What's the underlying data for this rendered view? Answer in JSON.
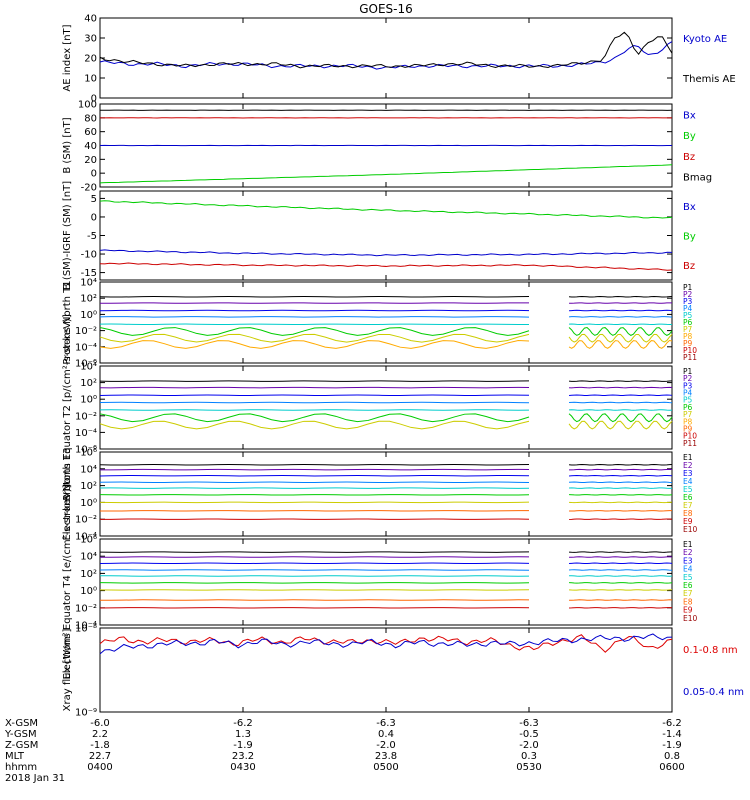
{
  "title": "GOES-16",
  "chart_data": [
    {
      "type": "line",
      "id": "ae",
      "ylabel": "AE index [nT]",
      "ylim": [
        0,
        40
      ],
      "yticks": [
        "0",
        "10",
        "20",
        "30",
        "40"
      ],
      "series": [
        {
          "name": "Kyoto AE",
          "color": "#0000cc",
          "x": [
            0,
            5,
            10,
            15,
            20,
            25,
            30,
            35,
            40,
            45,
            50,
            55,
            60,
            65,
            70,
            75,
            80,
            85,
            88,
            90,
            92,
            94,
            96,
            98,
            100
          ],
          "y": [
            18,
            17,
            17,
            16,
            17,
            17,
            16,
            16,
            16,
            16,
            15,
            16,
            16,
            16,
            16,
            16,
            16,
            17,
            18,
            20,
            24,
            26,
            21,
            24,
            28
          ]
        },
        {
          "name": "Themis AE",
          "color": "#000000",
          "x": [
            0,
            5,
            10,
            15,
            20,
            25,
            30,
            35,
            40,
            45,
            50,
            55,
            60,
            65,
            70,
            75,
            80,
            85,
            88,
            90,
            92,
            94,
            96,
            98,
            100
          ],
          "y": [
            20,
            18,
            17,
            16,
            17,
            17,
            17,
            16,
            16,
            16,
            16,
            16,
            17,
            17,
            16,
            16,
            16,
            18,
            19,
            30,
            33,
            22,
            28,
            31,
            23
          ]
        }
      ]
    },
    {
      "type": "line",
      "id": "bsm",
      "ylabel": "B (SM) [nT]",
      "ylim": [
        -20,
        100
      ],
      "yticks": [
        "-20",
        "0",
        "20",
        "40",
        "60",
        "80",
        "100"
      ],
      "series": [
        {
          "name": "Bx",
          "color": "#0000cc",
          "x": [
            0,
            100
          ],
          "y": [
            40,
            40
          ]
        },
        {
          "name": "By",
          "color": "#00cc00",
          "x": [
            0,
            25,
            50,
            75,
            100
          ],
          "y": [
            -14,
            -8,
            -2,
            5,
            12
          ]
        },
        {
          "name": "Bz",
          "color": "#cc0000",
          "x": [
            0,
            100
          ],
          "y": [
            80,
            80
          ]
        },
        {
          "name": "Bmag",
          "color": "#000000",
          "x": [
            0,
            100
          ],
          "y": [
            91,
            91
          ]
        }
      ]
    },
    {
      "type": "line",
      "id": "bigrf",
      "ylabel": "B (SM)-IGRF (SM) [nT]",
      "ylim": [
        -17,
        7
      ],
      "yticks": [
        "5",
        "0",
        "-5",
        "-10",
        "-15"
      ],
      "series": [
        {
          "name": "Bx",
          "color": "#0000cc",
          "x": [
            0,
            25,
            50,
            75,
            100
          ],
          "y": [
            -9,
            -9.8,
            -10.3,
            -10.1,
            -9.6
          ]
        },
        {
          "name": "By",
          "color": "#00cc00",
          "x": [
            0,
            25,
            50,
            75,
            100
          ],
          "y": [
            4.3,
            3,
            1.8,
            0.8,
            -0.3
          ]
        },
        {
          "name": "Bz",
          "color": "#cc0000",
          "x": [
            0,
            25,
            50,
            75,
            100
          ],
          "y": [
            -12.5,
            -13,
            -13.2,
            -13,
            -14.3
          ]
        }
      ]
    },
    {
      "type": "line",
      "id": "protons-north",
      "ylabel": "Protons North T1",
      "yscale": "log",
      "ylim": [
        1e-06,
        10000.0
      ],
      "yticks": [
        "10⁴",
        "10²",
        "10⁰",
        "10⁻²",
        "10⁻⁴",
        "10⁻⁶"
      ],
      "gap": [
        75,
        82
      ],
      "series": [
        {
          "name": "P1",
          "color": "#000000",
          "y": 150.0
        },
        {
          "name": "P2",
          "color": "#6600aa",
          "y": 25.0
        },
        {
          "name": "P3",
          "color": "#0000ee",
          "y": 3
        },
        {
          "name": "P4",
          "color": "#0080ff",
          "y": 0.5
        },
        {
          "name": "P5",
          "color": "#00cccc",
          "y": 0.06
        },
        {
          "name": "P6",
          "color": "#00cc00",
          "y": 0.008
        },
        {
          "name": "P7",
          "color": "#cccc00",
          "y": 0.0012
        },
        {
          "name": "P8",
          "color": "#ffaa00",
          "y": 0.0002
        },
        {
          "name": "P9",
          "color": "#ff6600",
          "y": null
        },
        {
          "name": "P10",
          "color": "#cc0000",
          "y": null
        },
        {
          "name": "P11",
          "color": "#990000",
          "y": null
        }
      ]
    },
    {
      "type": "line",
      "id": "protons-equator",
      "ylabel": "Protons Equator T2 [p/(cm²-s-sr-keV)]",
      "yscale": "log",
      "ylim": [
        1e-06,
        10000.0
      ],
      "yticks": [
        "10⁴",
        "10²",
        "10⁰",
        "10⁻²",
        "10⁻⁴",
        "10⁻⁶"
      ],
      "gap": [
        75,
        82
      ],
      "series": [
        {
          "name": "P1",
          "color": "#000000",
          "y": 150.0
        },
        {
          "name": "P2",
          "color": "#6600aa",
          "y": 25.0
        },
        {
          "name": "P3",
          "color": "#0000ee",
          "y": 3
        },
        {
          "name": "P4",
          "color": "#0080ff",
          "y": 0.4
        },
        {
          "name": "P5",
          "color": "#00cccc",
          "y": 0.05
        },
        {
          "name": "P6",
          "color": "#00cc00",
          "y": 0.006
        },
        {
          "name": "P7",
          "color": "#cccc00",
          "y": 0.0008
        },
        {
          "name": "P8",
          "color": "#ffaa00",
          "y": null
        },
        {
          "name": "P9",
          "color": "#ff6600",
          "y": null
        },
        {
          "name": "P10",
          "color": "#cc0000",
          "y": null
        },
        {
          "name": "P11",
          "color": "#990000",
          "y": null
        }
      ]
    },
    {
      "type": "line",
      "id": "electrons-north",
      "ylabel": "Electrons North T3",
      "yscale": "log",
      "ylim": [
        0.0001,
        1000000.0
      ],
      "yticks": [
        "10⁶",
        "10⁴",
        "10²",
        "10⁰",
        "10⁻²",
        "10⁻⁴"
      ],
      "gap": [
        75,
        82
      ],
      "series": [
        {
          "name": "E1",
          "color": "#000000",
          "y": 30000.0
        },
        {
          "name": "E2",
          "color": "#6600aa",
          "y": 8000.0
        },
        {
          "name": "E3",
          "color": "#0000ee",
          "y": 1500.0
        },
        {
          "name": "E4",
          "color": "#0080ff",
          "y": 250.0
        },
        {
          "name": "E5",
          "color": "#00cccc",
          "y": 50
        },
        {
          "name": "E6",
          "color": "#00cc00",
          "y": 8
        },
        {
          "name": "E7",
          "color": "#cccc00",
          "y": 1
        },
        {
          "name": "E8",
          "color": "#ff6600",
          "y": 0.1
        },
        {
          "name": "E9",
          "color": "#cc0000",
          "y": 0.01
        },
        {
          "name": "E10",
          "color": "#990000",
          "y": null
        }
      ]
    },
    {
      "type": "line",
      "id": "electrons-equator",
      "ylabel": "Electrons Equator T4 [e/(cm²-s-sr-keV)]",
      "yscale": "log",
      "ylim": [
        0.0001,
        1000000.0
      ],
      "yticks": [
        "10⁶",
        "10⁴",
        "10²",
        "10⁰",
        "10⁻²",
        "10⁻⁴"
      ],
      "gap": [
        75,
        82
      ],
      "series": [
        {
          "name": "E1",
          "color": "#000000",
          "y": 30000.0
        },
        {
          "name": "E2",
          "color": "#6600aa",
          "y": 8000.0
        },
        {
          "name": "E3",
          "color": "#0000ee",
          "y": 1500.0
        },
        {
          "name": "E4",
          "color": "#0080ff",
          "y": 250.0
        },
        {
          "name": "E5",
          "color": "#00cccc",
          "y": 50
        },
        {
          "name": "E6",
          "color": "#00cc00",
          "y": 8
        },
        {
          "name": "E7",
          "color": "#cccc00",
          "y": 1.2
        },
        {
          "name": "E8",
          "color": "#ff6600",
          "y": 0.08
        },
        {
          "name": "E9",
          "color": "#cc0000",
          "y": 0.01
        },
        {
          "name": "E10",
          "color": "#990000",
          "y": null
        }
      ]
    },
    {
      "type": "line",
      "id": "xray",
      "ylabel": "Xray flux [W/m²]",
      "yscale": "log",
      "ylim": [
        1e-09,
        1e-08
      ],
      "yticks": [
        "10⁻⁸",
        "10⁻⁹"
      ],
      "series": [
        {
          "name": "0.1-0.8 nm",
          "color": "#dd0000",
          "x": [
            0,
            4,
            8,
            12,
            16,
            20,
            24,
            28,
            32,
            36,
            40,
            44,
            48,
            52,
            56,
            60,
            64,
            68,
            72,
            76,
            80,
            84,
            88,
            92,
            96,
            100
          ],
          "y": [
            6.5e-09,
            7.5e-09,
            6.8e-09,
            7.2e-09,
            6.9e-09,
            7.1e-09,
            6.6e-09,
            7.3e-09,
            6.8e-09,
            7.4e-09,
            7e-09,
            6.7e-09,
            7.2e-09,
            6.5e-09,
            7.6e-09,
            7.3e-09,
            6.9e-09,
            7.1e-09,
            6.2e-09,
            5.6e-09,
            6.9e-09,
            7.8e-09,
            5.4e-09,
            7.9e-09,
            5.7e-09,
            7.2e-09
          ]
        },
        {
          "name": "0.05-0.4 nm",
          "color": "#0000cc",
          "x": [
            0,
            4,
            8,
            12,
            16,
            20,
            24,
            28,
            32,
            36,
            40,
            44,
            48,
            52,
            56,
            60,
            64,
            68,
            72,
            76,
            80,
            84,
            88,
            92,
            96,
            100
          ],
          "y": [
            5.3e-09,
            5.8e-09,
            6.2e-09,
            6.5e-09,
            6.6e-09,
            6.9e-09,
            6.3e-09,
            7e-09,
            6.4e-09,
            6.8e-09,
            6.6e-09,
            6.4e-09,
            6.9e-09,
            6.2e-09,
            6.8e-09,
            6.5e-09,
            6.3e-09,
            6.7e-09,
            6.4e-09,
            6.8e-09,
            7e-09,
            7.4e-09,
            7.5e-09,
            7.6e-09,
            7.8e-09,
            7.7e-09
          ]
        }
      ]
    }
  ],
  "footer": {
    "rows": [
      {
        "label": "X-GSM",
        "values": [
          "-6.0",
          "-6.2",
          "-6.3",
          "-6.3",
          "-6.2"
        ]
      },
      {
        "label": "Y-GSM",
        "values": [
          "2.2",
          "1.3",
          "0.4",
          "-0.5",
          "-1.4"
        ]
      },
      {
        "label": "Z-GSM",
        "values": [
          "-1.8",
          "-1.9",
          "-2.0",
          "-2.0",
          "-1.9"
        ]
      },
      {
        "label": "MLT",
        "values": [
          "22.7",
          "23.2",
          "23.8",
          "0.3",
          "0.8"
        ]
      },
      {
        "label": "hhmm",
        "values": [
          "0400",
          "0430",
          "0500",
          "0530",
          "0600"
        ]
      }
    ],
    "date": "2018 Jan 31"
  }
}
